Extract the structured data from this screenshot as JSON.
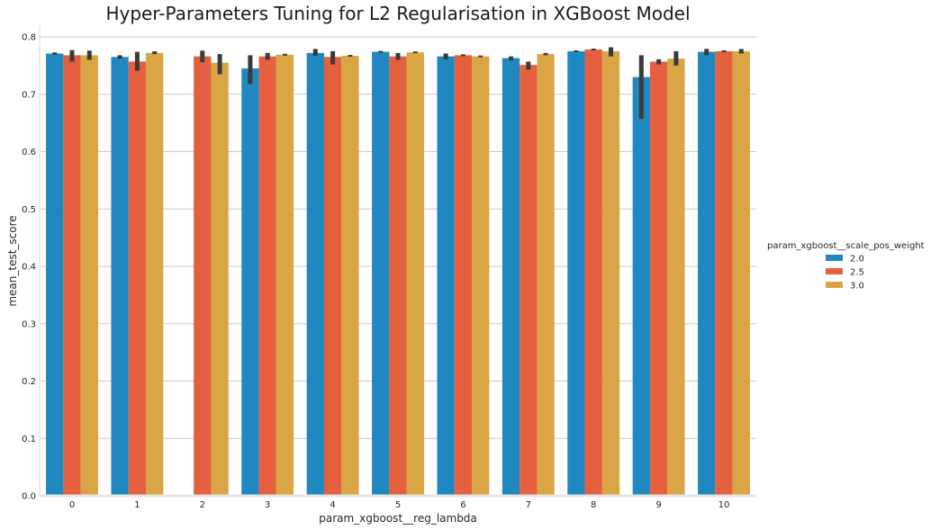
{
  "chart_data": {
    "type": "bar",
    "title": "Hyper-Parameters Tuning for L2 Regularisation in XGBoost Model",
    "xlabel": "param_xgboost__reg_lambda",
    "ylabel": "mean_test_score",
    "categories": [
      "0",
      "1",
      "2",
      "3",
      "4",
      "5",
      "6",
      "7",
      "8",
      "9",
      "10"
    ],
    "ylim": [
      0.0,
      0.82
    ],
    "yticks": [
      "0.0",
      "0.1",
      "0.2",
      "0.3",
      "0.4",
      "0.5",
      "0.6",
      "0.7",
      "0.8"
    ],
    "grid": "horizontal",
    "legend": {
      "title": "param_xgboost__scale_pos_weight",
      "placement": "right"
    },
    "series": [
      {
        "name": "2.0",
        "color": "#1f88c1",
        "values": [
          0.771,
          0.765,
          null,
          0.745,
          0.772,
          0.774,
          0.766,
          0.763,
          0.775,
          0.73,
          0.774
        ],
        "err_low": [
          0.769,
          0.762,
          null,
          0.718,
          0.767,
          0.774,
          0.761,
          0.759,
          0.775,
          0.657,
          0.768
        ],
        "err_high": [
          0.773,
          0.768,
          null,
          0.768,
          0.779,
          0.774,
          0.771,
          0.766,
          0.775,
          0.768,
          0.779
        ]
      },
      {
        "name": "2.5",
        "color": "#e5603f",
        "values": [
          0.768,
          0.757,
          0.766,
          0.766,
          0.765,
          0.766,
          0.768,
          0.751,
          0.778,
          0.757,
          0.775
        ],
        "err_low": [
          0.757,
          0.741,
          0.756,
          0.76,
          0.752,
          0.76,
          0.768,
          0.743,
          0.777,
          0.752,
          0.775
        ],
        "err_high": [
          0.777,
          0.774,
          0.776,
          0.772,
          0.775,
          0.772,
          0.768,
          0.757,
          0.779,
          0.761,
          0.775
        ]
      },
      {
        "name": "3.0",
        "color": "#d9a545",
        "values": [
          0.768,
          0.772,
          0.755,
          0.769,
          0.767,
          0.773,
          0.766,
          0.77,
          0.775,
          0.762,
          0.775
        ],
        "err_low": [
          0.76,
          0.77,
          0.735,
          0.769,
          0.767,
          0.773,
          0.766,
          0.768,
          0.766,
          0.75,
          0.771
        ],
        "err_high": [
          0.776,
          0.775,
          0.77,
          0.769,
          0.767,
          0.773,
          0.766,
          0.772,
          0.782,
          0.775,
          0.779
        ]
      }
    ]
  }
}
